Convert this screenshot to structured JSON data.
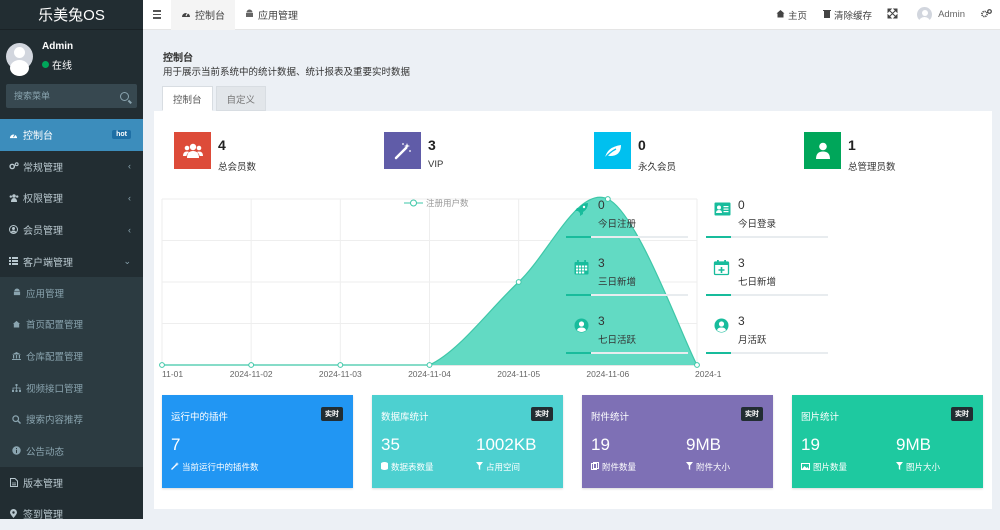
{
  "app": {
    "title": "乐美兔OS"
  },
  "user": {
    "name": "Admin",
    "status": "在线"
  },
  "sidebar": {
    "search_placeholder": "搜索菜单",
    "items": [
      {
        "label": "控制台",
        "badge": "hot",
        "active": true,
        "icon": "dashboard-icon"
      },
      {
        "label": "常规管理",
        "chevron": "‹",
        "icon": "cogs-icon"
      },
      {
        "label": "权限管理",
        "chevron": "‹",
        "icon": "group-icon"
      },
      {
        "label": "会员管理",
        "chevron": "‹",
        "icon": "user-circle-icon"
      },
      {
        "label": "客户端管理",
        "chevron": "⌄",
        "icon": "list-icon"
      },
      {
        "label": "应用管理",
        "sub": true,
        "icon": "android-icon"
      },
      {
        "label": "首页配置管理",
        "sub": true,
        "icon": "home-icon"
      },
      {
        "label": "仓库配置管理",
        "sub": true,
        "icon": "bank-icon"
      },
      {
        "label": "视频接口管理",
        "sub": true,
        "icon": "sitemap-icon"
      },
      {
        "label": "搜索内容推荐",
        "sub": true,
        "icon": "search-icon"
      },
      {
        "label": "公告动态",
        "sub": true,
        "icon": "info-icon"
      },
      {
        "label": "版本管理",
        "icon": "file-icon"
      },
      {
        "label": "签到管理",
        "icon": "map-marker-icon"
      }
    ]
  },
  "topbar": {
    "tabs": [
      {
        "label": "控制台",
        "icon": "dashboard-icon",
        "active": true
      },
      {
        "label": "应用管理",
        "icon": "android-icon"
      }
    ],
    "home_label": "主页",
    "clear_cache_label": "清除缓存",
    "admin_label": "Admin"
  },
  "header": {
    "title": "控制台",
    "description": "用于展示当前系统中的统计数据、统计报表及重要实时数据",
    "tabs": [
      "控制台",
      "自定义"
    ]
  },
  "stats": [
    {
      "value": "4",
      "label": "总会员数",
      "color": "#dd4b39",
      "icon": "users-icon"
    },
    {
      "value": "3",
      "label": "VIP",
      "color": "#605ca8",
      "icon": "magic-icon"
    },
    {
      "value": "0",
      "label": "永久会员",
      "color": "#00c0ef",
      "icon": "leaf-icon"
    },
    {
      "value": "1",
      "label": "总管理员数",
      "color": "#00a65a",
      "icon": "user-icon"
    }
  ],
  "mini_stats": [
    {
      "value": "0",
      "label": "今日注册",
      "icon": "rocket-icon"
    },
    {
      "value": "0",
      "label": "今日登录",
      "icon": "vcard-icon"
    },
    {
      "value": "3",
      "label": "三日新增",
      "icon": "calendar-icon"
    },
    {
      "value": "3",
      "label": "七日新增",
      "icon": "calendar-plus-icon"
    },
    {
      "value": "3",
      "label": "七日活跃",
      "icon": "user-circle-icon"
    },
    {
      "value": "3",
      "label": "月活跃",
      "icon": "user-circle-icon"
    }
  ],
  "chart_data": {
    "type": "area",
    "x": [
      "11-01",
      "2024-11-02",
      "2024-11-03",
      "2024-11-04",
      "2024-11-05",
      "2024-11-06",
      "2024-1"
    ],
    "series": [
      {
        "name": "注册用户数",
        "values": [
          0,
          0,
          0,
          0,
          1,
          2,
          0
        ]
      }
    ],
    "ylim": [
      0,
      2
    ],
    "grid": true,
    "legend": "top-center",
    "color": "#5ad8c0"
  },
  "info_boxes": [
    {
      "title": "运行中的插件",
      "tag": "实时",
      "color": "#2196f3",
      "values": [
        {
          "value": "7",
          "label": "当前运行中的插件数",
          "icon": "magic-icon"
        }
      ]
    },
    {
      "title": "数据库统计",
      "tag": "实时",
      "color": "#4dd0d0",
      "values": [
        {
          "value": "35",
          "label": "数据表数量",
          "icon": "database-icon"
        },
        {
          "value": "1002KB",
          "label": "占用空间",
          "icon": "filter-icon"
        }
      ]
    },
    {
      "title": "附件统计",
      "tag": "实时",
      "color": "#7e70b5",
      "values": [
        {
          "value": "19",
          "label": "附件数量",
          "icon": "files-icon"
        },
        {
          "value": "9MB",
          "label": "附件大小",
          "icon": "filter-icon"
        }
      ]
    },
    {
      "title": "图片统计",
      "tag": "实时",
      "color": "#1ec9a0",
      "values": [
        {
          "value": "19",
          "label": "图片数量",
          "icon": "image-icon"
        },
        {
          "value": "9MB",
          "label": "图片大小",
          "icon": "filter-icon"
        }
      ]
    }
  ]
}
